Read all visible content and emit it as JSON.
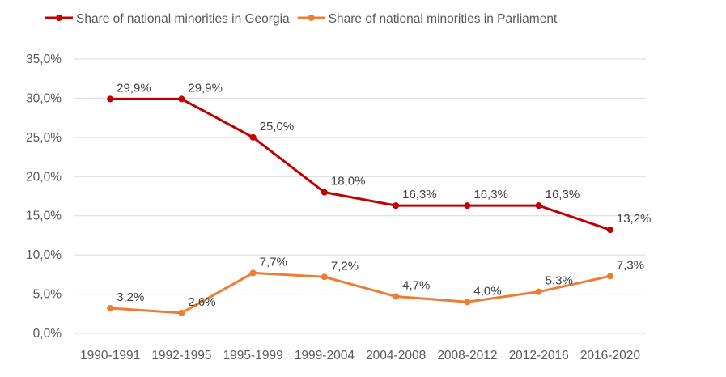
{
  "chart_data": {
    "type": "line",
    "categories": [
      "1990-1991",
      "1992-1995",
      "1995-1999",
      "1999-2004",
      "2004-2008",
      "2008-2012",
      "2012-2016",
      "2016-2020"
    ],
    "series": [
      {
        "name": "Share of national minorities in Georgia",
        "color": "#C00000",
        "values": [
          29.9,
          29.9,
          25.0,
          18.0,
          16.3,
          16.3,
          16.3,
          13.2
        ],
        "labels": [
          "29,9%",
          "29,9%",
          "25,0%",
          "18,0%",
          "16,3%",
          "16,3%",
          "16,3%",
          "13,2%"
        ]
      },
      {
        "name": "Share of national minorities in Parliament",
        "color": "#ED7D31",
        "values": [
          3.2,
          2.6,
          7.7,
          7.2,
          4.7,
          4.0,
          5.3,
          7.3
        ],
        "labels": [
          "3,2%",
          "2,6%",
          "7,7%",
          "7,2%",
          "4,7%",
          "4,0%",
          "5,3%",
          "7,3%"
        ]
      }
    ],
    "yticks": [
      "0,0%",
      "5,0%",
      "10,0%",
      "15,0%",
      "20,0%",
      "25,0%",
      "30,0%",
      "35,0%"
    ],
    "ylim": [
      0,
      35
    ],
    "grid": true,
    "legend": "top-left"
  }
}
